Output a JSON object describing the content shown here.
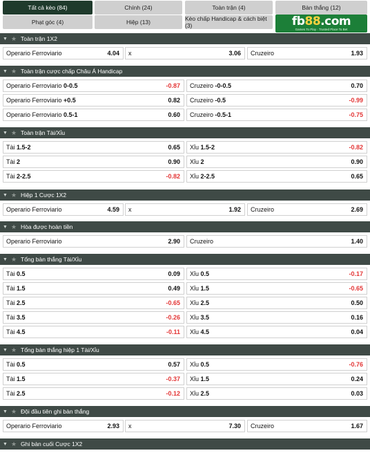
{
  "tabs": [
    {
      "label": "Tất cả kèo (84)",
      "active": true
    },
    {
      "label": "Chính (24)"
    },
    {
      "label": "Toàn trận (4)"
    },
    {
      "label": "Bàn thắng (12)"
    },
    {
      "label": "Phạt góc (4)"
    },
    {
      "label": "Hiệp (13)"
    },
    {
      "label": "Kèo chấp Handicap & cách biệt (3)"
    }
  ],
  "logo": {
    "text_a": "fb",
    "text_b": "88",
    "text_c": ".com",
    "tagline": "Games To Play · Trusted Place To Bet"
  },
  "sections": [
    {
      "title": "Toàn trận 1X2",
      "layout": "three",
      "rows": [
        [
          {
            "label": "Operario Ferroviario",
            "odd": "4.04"
          },
          {
            "label": "x",
            "odd": "3.06"
          },
          {
            "label": "Cruzeiro",
            "odd": "1.93"
          }
        ]
      ]
    },
    {
      "title": "Toàn trận cược chấp Châu Á Handicap",
      "layout": "two",
      "rows": [
        [
          {
            "label": "Operario Ferroviario",
            "line": "0-0.5",
            "odd": "-0.87"
          },
          {
            "label": "Cruzeiro",
            "line": "-0-0.5",
            "odd": "0.70"
          }
        ],
        [
          {
            "label": "Operario Ferroviario",
            "line": "+0.5",
            "odd": "0.82"
          },
          {
            "label": "Cruzeiro",
            "line": "-0.5",
            "odd": "-0.99"
          }
        ],
        [
          {
            "label": "Operario Ferroviario",
            "line": "0.5-1",
            "odd": "0.60"
          },
          {
            "label": "Cruzeiro",
            "line": "-0.5-1",
            "odd": "-0.75"
          }
        ]
      ]
    },
    {
      "title": "Toàn trận Tài/Xỉu",
      "layout": "two",
      "rows": [
        [
          {
            "label": "Tài",
            "line": "1.5-2",
            "odd": "0.65"
          },
          {
            "label": "Xỉu",
            "line": "1.5-2",
            "odd": "-0.82"
          }
        ],
        [
          {
            "label": "Tài",
            "line": "2",
            "odd": "0.90"
          },
          {
            "label": "Xỉu",
            "line": "2",
            "odd": "0.90"
          }
        ],
        [
          {
            "label": "Tài",
            "line": "2-2.5",
            "odd": "-0.82"
          },
          {
            "label": "Xỉu",
            "line": "2-2.5",
            "odd": "0.65"
          }
        ]
      ]
    },
    {
      "title": "Hiệp 1 Cược 1X2",
      "layout": "three",
      "rows": [
        [
          {
            "label": "Operario Ferroviario",
            "odd": "4.59"
          },
          {
            "label": "x",
            "odd": "1.92"
          },
          {
            "label": "Cruzeiro",
            "odd": "2.69"
          }
        ]
      ]
    },
    {
      "title": "Hòa được hoàn tiền",
      "layout": "two",
      "rows": [
        [
          {
            "label": "Operario Ferroviario",
            "odd": "2.90"
          },
          {
            "label": "Cruzeiro",
            "odd": "1.40"
          }
        ]
      ]
    },
    {
      "title": "Tổng bàn thắng Tài/Xỉu",
      "layout": "two",
      "rows": [
        [
          {
            "label": "Tài",
            "line": "0.5",
            "odd": "0.09"
          },
          {
            "label": "Xỉu",
            "line": "0.5",
            "odd": "-0.17"
          }
        ],
        [
          {
            "label": "Tài",
            "line": "1.5",
            "odd": "0.49"
          },
          {
            "label": "Xỉu",
            "line": "1.5",
            "odd": "-0.65"
          }
        ],
        [
          {
            "label": "Tài",
            "line": "2.5",
            "odd": "-0.65"
          },
          {
            "label": "Xỉu",
            "line": "2.5",
            "odd": "0.50"
          }
        ],
        [
          {
            "label": "Tài",
            "line": "3.5",
            "odd": "-0.26"
          },
          {
            "label": "Xỉu",
            "line": "3.5",
            "odd": "0.16"
          }
        ],
        [
          {
            "label": "Tài",
            "line": "4.5",
            "odd": "-0.11"
          },
          {
            "label": "Xỉu",
            "line": "4.5",
            "odd": "0.04"
          }
        ]
      ]
    },
    {
      "title": "Tổng bàn thắng hiệp 1 Tài/Xỉu",
      "layout": "two",
      "rows": [
        [
          {
            "label": "Tài",
            "line": "0.5",
            "odd": "0.57"
          },
          {
            "label": "Xỉu",
            "line": "0.5",
            "odd": "-0.76"
          }
        ],
        [
          {
            "label": "Tài",
            "line": "1.5",
            "odd": "-0.37"
          },
          {
            "label": "Xỉu",
            "line": "1.5",
            "odd": "0.24"
          }
        ],
        [
          {
            "label": "Tài",
            "line": "2.5",
            "odd": "-0.12"
          },
          {
            "label": "Xỉu",
            "line": "2.5",
            "odd": "0.03"
          }
        ]
      ]
    },
    {
      "title": "Đội đầu tiên ghi bàn thắng",
      "layout": "three",
      "rows": [
        [
          {
            "label": "Operario Ferroviario",
            "odd": "2.93"
          },
          {
            "label": "x",
            "odd": "7.30"
          },
          {
            "label": "Cruzeiro",
            "odd": "1.67"
          }
        ]
      ]
    },
    {
      "title": "Ghi bàn cuối Cược 1X2",
      "layout": "three",
      "rows": []
    }
  ],
  "colors": {
    "header_bg": "#3f4a46",
    "active_tab": "#1f3a2c",
    "negative_odd": "#e33535",
    "logo_bg": "#1c7f38"
  },
  "icons": {
    "collapse": "chevron-down-icon",
    "favorite": "star-icon"
  }
}
